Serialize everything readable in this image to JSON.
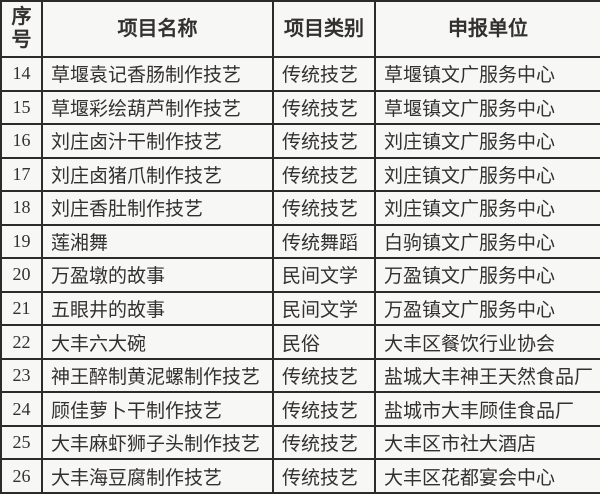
{
  "colors": {
    "border": "#2b2b2b",
    "text": "#33312f",
    "cell_background": "#f7f7f6"
  },
  "table": {
    "headers": {
      "index": "序号",
      "project_name": "项目名称",
      "category": "项目类别",
      "applicant_unit": "申报单位"
    },
    "rows": [
      {
        "no": "14",
        "name": "草堰袁记香肠制作技艺",
        "category": "传统技艺",
        "unit": "草堰镇文广服务中心"
      },
      {
        "no": "15",
        "name": "草堰彩绘葫芦制作技艺",
        "category": "传统技艺",
        "unit": "草堰镇文广服务中心"
      },
      {
        "no": "16",
        "name": "刘庄卤汁干制作技艺",
        "category": "传统技艺",
        "unit": "刘庄镇文广服务中心"
      },
      {
        "no": "17",
        "name": "刘庄卤猪爪制作技艺",
        "category": "传统技艺",
        "unit": "刘庄镇文广服务中心"
      },
      {
        "no": "18",
        "name": "刘庄香肚制作技艺",
        "category": "传统技艺",
        "unit": "刘庄镇文广服务中心"
      },
      {
        "no": "19",
        "name": "莲湘舞",
        "category": "传统舞蹈",
        "unit": "白驹镇文广服务中心"
      },
      {
        "no": "20",
        "name": "万盈墩的故事",
        "category": "民间文学",
        "unit": "万盈镇文广服务中心"
      },
      {
        "no": "21",
        "name": "五眼井的故事",
        "category": "民间文学",
        "unit": "万盈镇文广服务中心"
      },
      {
        "no": "22",
        "name": "大丰六大碗",
        "category": "民俗",
        "unit": "大丰区餐饮行业协会"
      },
      {
        "no": "23",
        "name": "神王醉制黄泥螺制作技艺",
        "category": "传统技艺",
        "unit": "盐城大丰神王天然食品厂"
      },
      {
        "no": "24",
        "name": "顾佳萝卜干制作技艺",
        "category": "传统技艺",
        "unit": "盐城市大丰顾佳食品厂"
      },
      {
        "no": "25",
        "name": "大丰麻虾狮子头制作技艺",
        "category": "传统技艺",
        "unit": "大丰区市社大酒店"
      },
      {
        "no": "26",
        "name": "大丰海豆腐制作技艺",
        "category": "传统技艺",
        "unit": "大丰区花都宴会中心"
      }
    ]
  }
}
